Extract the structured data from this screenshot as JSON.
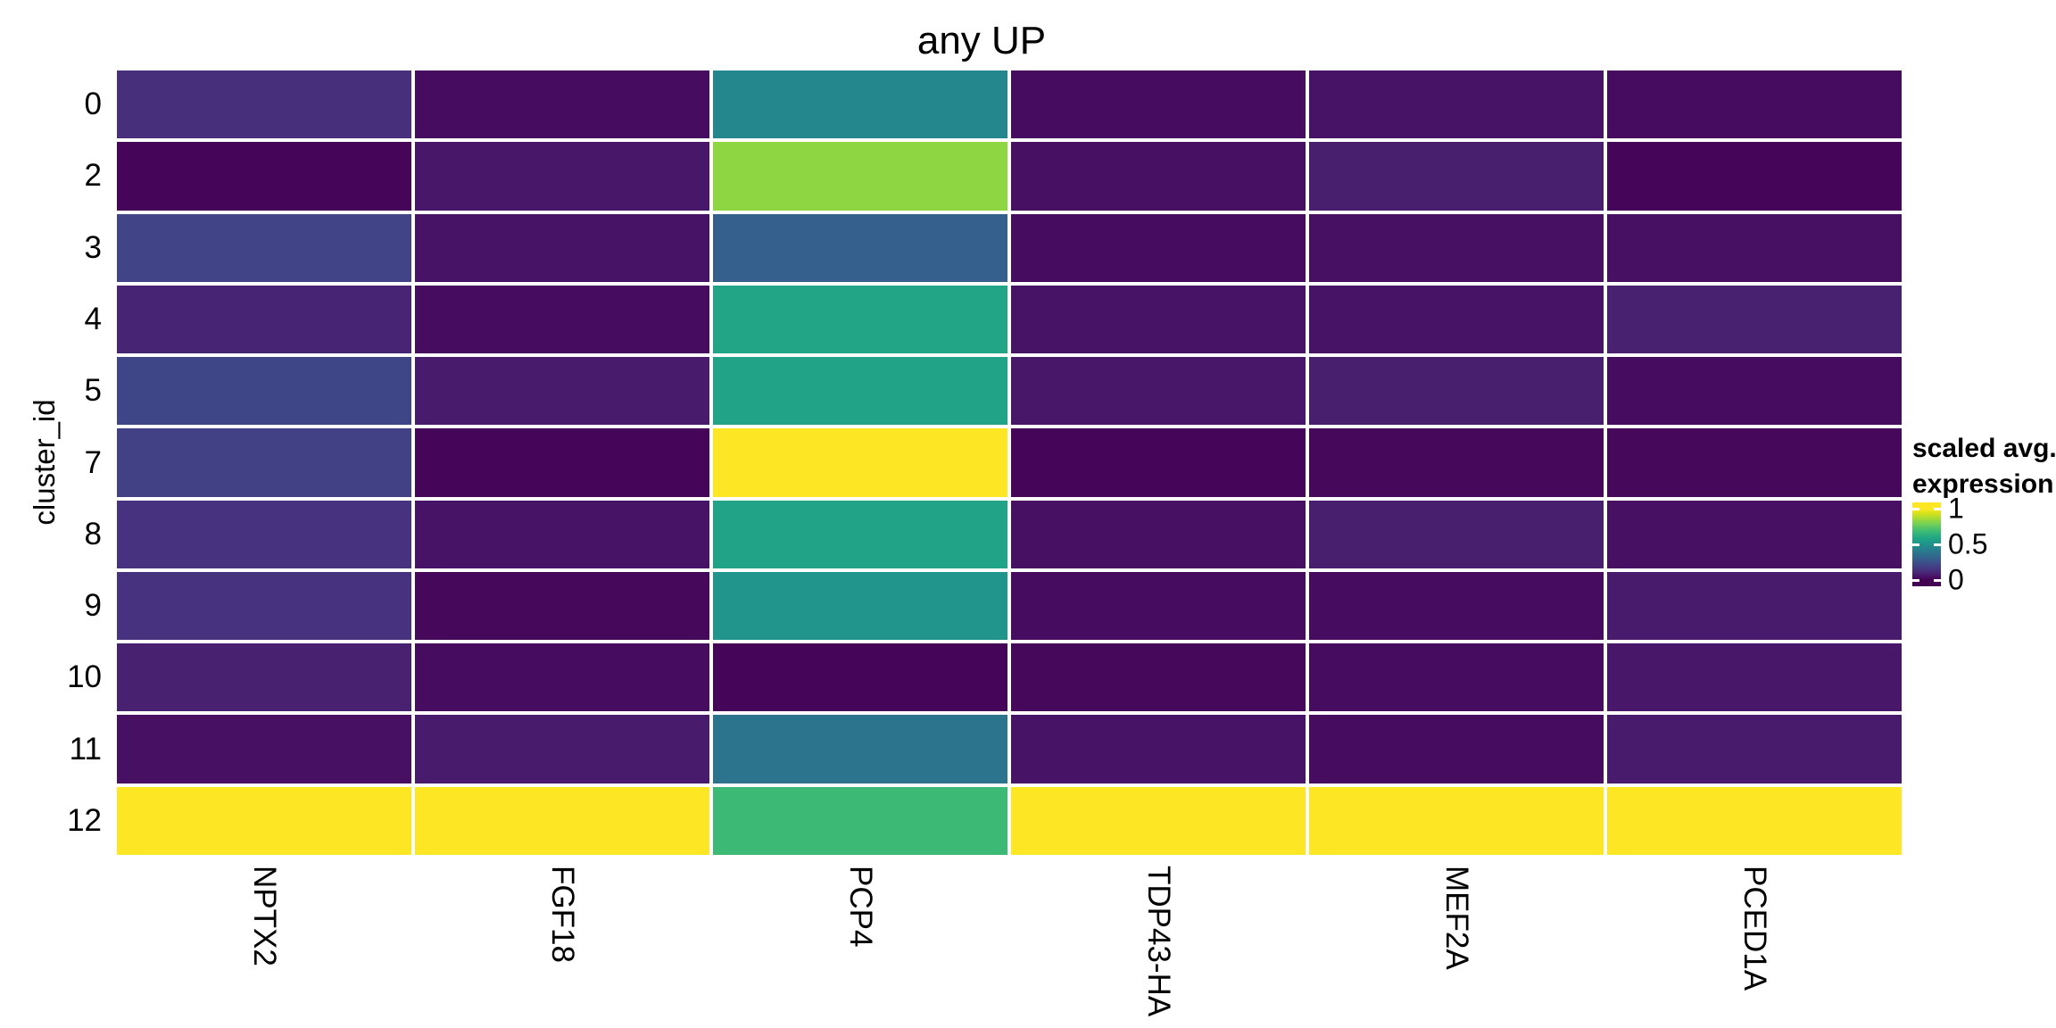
{
  "chart_data": {
    "type": "heatmap",
    "title": "any UP",
    "xlabel": "",
    "ylabel": "cluster_id",
    "x_categories": [
      "NPTX2",
      "FGF18",
      "PCP4",
      "TDP43-HA",
      "MEF2A",
      "PCED1A"
    ],
    "y_categories": [
      "0",
      "2",
      "3",
      "4",
      "5",
      "7",
      "8",
      "9",
      "10",
      "11",
      "12"
    ],
    "values": [
      [
        0.13,
        0.03,
        0.46,
        0.03,
        0.05,
        0.03
      ],
      [
        0.01,
        0.06,
        0.83,
        0.04,
        0.08,
        0.01
      ],
      [
        0.2,
        0.05,
        0.3,
        0.03,
        0.04,
        0.04
      ],
      [
        0.1,
        0.03,
        0.58,
        0.05,
        0.05,
        0.09
      ],
      [
        0.21,
        0.07,
        0.57,
        0.06,
        0.08,
        0.03
      ],
      [
        0.19,
        0.01,
        1.0,
        0.01,
        0.02,
        0.02
      ],
      [
        0.14,
        0.05,
        0.57,
        0.04,
        0.08,
        0.04
      ],
      [
        0.14,
        0.02,
        0.51,
        0.03,
        0.03,
        0.07
      ],
      [
        0.09,
        0.03,
        0.01,
        0.02,
        0.03,
        0.06
      ],
      [
        0.04,
        0.07,
        0.38,
        0.05,
        0.03,
        0.07
      ],
      [
        1.0,
        1.0,
        0.68,
        1.0,
        1.0,
        1.0
      ]
    ],
    "value_range": [
      0,
      1
    ],
    "legend": {
      "title_line1": "scaled avg.",
      "title_line2": "expression",
      "tick_labels": [
        "1",
        "0.5",
        "0"
      ],
      "tick_values": [
        1,
        0.5,
        0
      ],
      "position": "right"
    },
    "colormap": {
      "name": "viridis",
      "stops": [
        "#440154",
        "#48186a",
        "#472d7b",
        "#424086",
        "#3b528b",
        "#33638d",
        "#2c728e",
        "#26828e",
        "#21918c",
        "#1fa188",
        "#28ae80",
        "#3fbc73",
        "#5ec962",
        "#84d44b",
        "#addc30",
        "#d8e219",
        "#fde725"
      ]
    },
    "layout": {
      "background": "#ffffff",
      "grid_gap_color": "#ffffff",
      "text_color": "#000000",
      "grid": "off",
      "legend_tick_color": "#ffffff"
    }
  }
}
